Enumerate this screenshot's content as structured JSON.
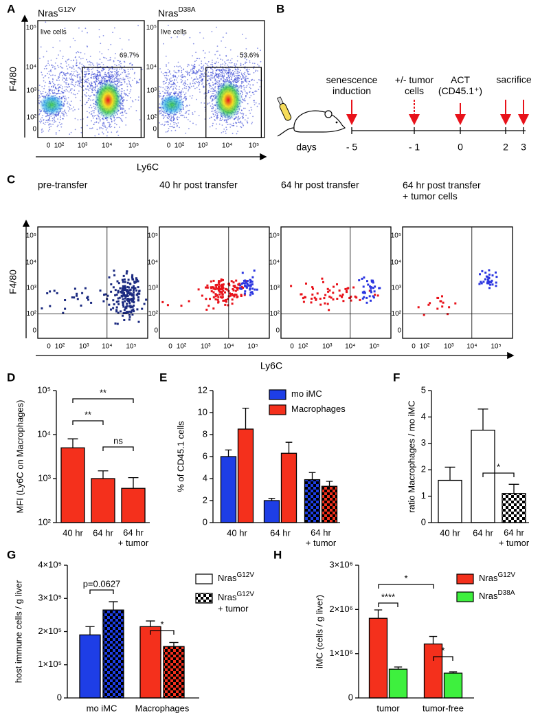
{
  "panel_labels": [
    "A",
    "B",
    "C",
    "D",
    "E",
    "F",
    "G",
    "H"
  ],
  "flow_a": {
    "y_label": "F4/80",
    "x_label": "Ly6C",
    "plots": [
      {
        "title": "Nras",
        "title_sup": "G12V",
        "gate_label": "live cells",
        "gate_percent": "69.7%"
      },
      {
        "title": "Nras",
        "title_sup": "D38A",
        "gate_label": "live cells",
        "gate_percent": "53.6%"
      }
    ],
    "xtick_labels": [
      "0",
      "10²",
      "10³",
      "10⁴",
      "10⁵"
    ],
    "ytick_labels": [
      "0",
      "10²",
      "10³",
      "10⁴",
      "10⁵"
    ]
  },
  "timeline": {
    "events": [
      "senescence\ninduction",
      "+/- tumor\ncells",
      "ACT\n(CD45.1⁺)",
      "sacrifice"
    ],
    "days_label": "days",
    "days": [
      "- 5",
      "- 1",
      "0",
      "2",
      "3"
    ]
  },
  "flow_c": {
    "titles": [
      "pre-transfer",
      "40 hr post transfer",
      "64 hr post transfer",
      "64 hr post transfer\n+ tumor cells"
    ],
    "y_label": "F4/80",
    "x_label": "Ly6C",
    "xtick_labels": [
      "0",
      "10²",
      "10³",
      "10⁴",
      "10⁵"
    ],
    "ytick_labels": [
      "0",
      "10²",
      "10³",
      "10⁴",
      "10⁵"
    ]
  },
  "chart_data": [
    {
      "type": "bar",
      "y_label": "MFI (Ly6C on Macrophages)",
      "categories": [
        "40 hr",
        "64 hr",
        "64 hr\n+ tumor"
      ],
      "values": [
        5000,
        1000,
        600
      ],
      "errors": [
        3000,
        500,
        450
      ],
      "color": "#f4301c",
      "log_scale": true,
      "ylim": [
        100,
        100000
      ],
      "yticks": [
        {
          "value": 100,
          "label": "10²"
        },
        {
          "value": 1000,
          "label": "10³"
        },
        {
          "value": 10000,
          "label": "10⁴"
        },
        {
          "value": 100000,
          "label": "10⁵"
        }
      ],
      "annotations": [
        "**",
        "**",
        "ns"
      ]
    },
    {
      "type": "grouped_bar",
      "y_label": "% of CD45.1 cells",
      "categories": [
        "40 hr",
        "64 hr",
        "64 hr\n+ tumor"
      ],
      "series": [
        {
          "name": "mo iMC",
          "color": "#1e3ee6",
          "values": [
            6.0,
            2.0,
            3.9
          ],
          "errors": [
            0.6,
            0.2,
            0.65
          ]
        },
        {
          "name": "Macrophages",
          "color": "#f4301c",
          "values": [
            8.5,
            6.3,
            3.3
          ],
          "errors": [
            1.9,
            1.0,
            0.45
          ]
        }
      ],
      "checkered_categories": [
        false,
        false,
        true
      ],
      "legend": "upper right",
      "ylim": [
        0,
        12
      ],
      "yticks": [
        0,
        2,
        4,
        6,
        8,
        10,
        12
      ]
    },
    {
      "type": "bar",
      "y_label": "ratio Macrophages / mo iMC",
      "categories": [
        "40 hr",
        "64 hr",
        "64 hr\n+ tumor"
      ],
      "values": [
        1.6,
        3.5,
        1.1
      ],
      "errors": [
        0.5,
        0.8,
        0.35
      ],
      "color": "#ffffff",
      "checkered_categories": [
        false,
        false,
        true
      ],
      "ylim": [
        0,
        5
      ],
      "yticks": [
        0,
        1,
        2,
        3,
        4,
        5
      ],
      "annotations": [
        "*"
      ]
    },
    {
      "type": "grouped_bar",
      "y_label": "host immune cells / g liver",
      "categories": [
        "mo iMC",
        "Macrophages"
      ],
      "category_colors": [
        "#1e3ee6",
        "#f4301c"
      ],
      "series": [
        {
          "name": "Nras",
          "name_sup": "G12V",
          "color": "#ffffff",
          "values": [
            190000,
            215000
          ],
          "errors": [
            25000,
            17000
          ]
        },
        {
          "name": "Nras",
          "name_sup": "G12V",
          "name_suffix": "+ tumor",
          "color": "#ffffff",
          "values": [
            265000,
            155000
          ],
          "errors": [
            25000,
            12000
          ]
        }
      ],
      "checkered_series": [
        false,
        true
      ],
      "legend": "right",
      "ylim": [
        0,
        400000
      ],
      "yticks": [
        0,
        {
          "value": 100000,
          "label": "1×10⁵"
        },
        {
          "value": 200000,
          "label": "2×10⁵"
        },
        {
          "value": 300000,
          "label": "3×10⁵"
        },
        {
          "value": 400000,
          "label": "4×10⁵"
        }
      ],
      "annotations": [
        "p=0.0627",
        "*"
      ]
    },
    {
      "type": "grouped_bar",
      "y_label": "iMC (cells / g liver)",
      "categories": [
        "tumor",
        "tumor-free"
      ],
      "series": [
        {
          "name": "Nras",
          "name_sup": "G12V",
          "color": "#f4301c",
          "values": [
            1800000,
            1220000
          ],
          "errors": [
            190000,
            170000
          ]
        },
        {
          "name": "Nras",
          "name_sup": "D38A",
          "color": "#3ef03e",
          "values": [
            650000,
            560000
          ],
          "errors": [
            50000,
            30000
          ]
        }
      ],
      "legend": "right",
      "ylim": [
        0,
        3000000
      ],
      "yticks": [
        0,
        {
          "value": 1000000,
          "label": "1×10⁶"
        },
        {
          "value": 2000000,
          "label": "2×10⁶"
        },
        {
          "value": 3000000,
          "label": "3×10⁶"
        }
      ],
      "annotations": [
        "****",
        "*",
        "*"
      ]
    }
  ]
}
